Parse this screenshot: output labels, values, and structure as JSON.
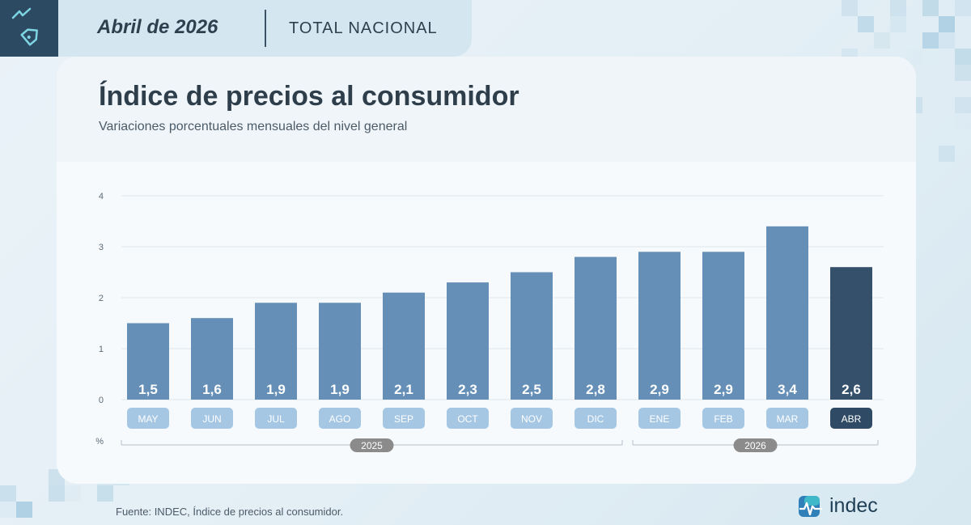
{
  "header": {
    "period": "Abril de 2026",
    "scope": "TOTAL NACIONAL"
  },
  "footer": {
    "source": "Fuente: INDEC, Índice de precios al consumidor.",
    "logo_text": "indec"
  },
  "icons": {
    "header_icon": "price-tag-icon",
    "logo_icon": "indec-logo-icon"
  },
  "colors": {
    "bar": "#658fb6",
    "bar_highlight": "#34506b",
    "label": "#a5c7e4",
    "label_highlight": "#2e4a64",
    "year_badge": "#8b8b8b",
    "dark": "#2d4a63"
  },
  "chart_data": {
    "type": "bar",
    "title": "Índice de precios al consumidor",
    "subtitle": "Variaciones porcentuales mensuales del nivel general",
    "ylabel": "%",
    "ylim": [
      0,
      4
    ],
    "yticks": [
      "0",
      "1",
      "2",
      "3",
      "4"
    ],
    "grid": true,
    "categories": [
      "MAY",
      "JUN",
      "JUL",
      "AGO",
      "SEP",
      "OCT",
      "NOV",
      "DIC",
      "ENE",
      "FEB",
      "MAR",
      "ABR"
    ],
    "values": [
      1.5,
      1.6,
      1.9,
      1.9,
      2.1,
      2.3,
      2.5,
      2.8,
      2.9,
      2.9,
      3.4,
      2.6
    ],
    "value_labels": [
      "1,5",
      "1,6",
      "1,9",
      "1,9",
      "2,1",
      "2,3",
      "2,5",
      "2,8",
      "2,9",
      "2,9",
      "3,4",
      "2,6"
    ],
    "highlight": "ABR",
    "year_groups": [
      {
        "label": "2025",
        "first": 0,
        "last": 7
      },
      {
        "label": "2026",
        "first": 8,
        "last": 11
      }
    ]
  }
}
